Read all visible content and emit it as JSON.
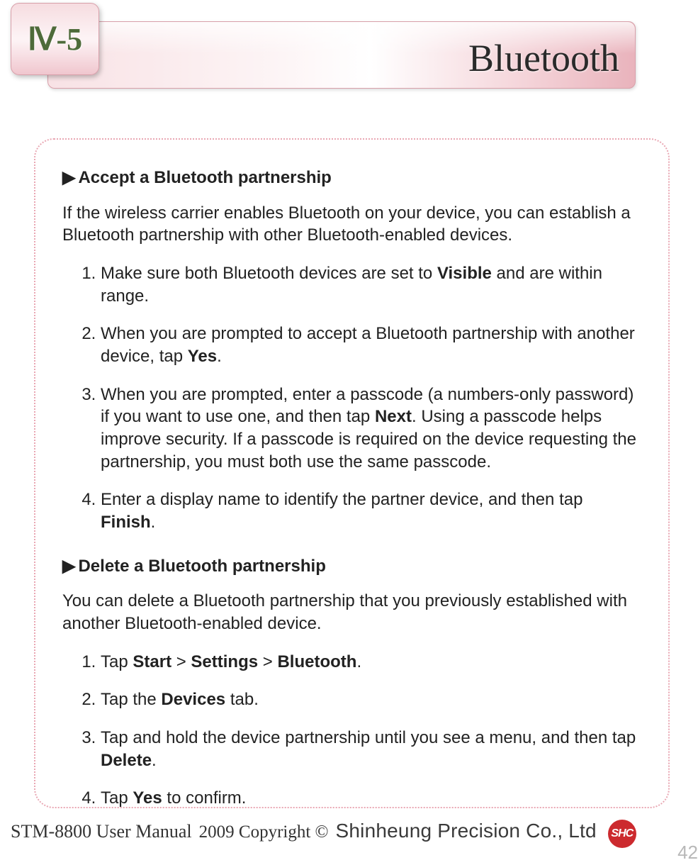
{
  "header": {
    "section_number": "Ⅳ-5",
    "title": "Bluetooth"
  },
  "content": {
    "section_a": {
      "heading_marker": "▶",
      "heading": "Accept a Bluetooth partnership",
      "intro": "If the wireless carrier enables Bluetooth on your device, you can establish a Bluetooth partnership with other Bluetooth-enabled devices.",
      "steps": [
        {
          "pre": "Make sure both Bluetooth devices are set to ",
          "b1": "Visible",
          "post": " and are within range."
        },
        {
          "pre": "When you are prompted to accept a Bluetooth partnership with another device, tap ",
          "b1": "Yes",
          "post": "."
        },
        {
          "pre": "When you are prompted, enter a passcode (a numbers-only password) if you want to use one, and then tap ",
          "b1": "Next",
          "post": ". Using a passcode helps improve security. If a passcode is required on the device requesting the partnership, you must both use the same passcode."
        },
        {
          "pre": "Enter a display name to identify the partner device, and then tap ",
          "b1": "Finish",
          "post": "."
        }
      ]
    },
    "section_b": {
      "heading_marker": "▶",
      "heading": "Delete a Bluetooth partnership",
      "intro": "You can delete a Bluetooth partnership that you previously established with another Bluetooth-enabled device.",
      "steps": [
        {
          "pre": "Tap ",
          "b1": "Start",
          "mid1": " > ",
          "b2": "Settings",
          "mid2": " > ",
          "b3": "Bluetooth",
          "post": "."
        },
        {
          "pre": "Tap the ",
          "b1": "Devices",
          "post": " tab."
        },
        {
          "pre": "Tap and hold the device partnership until you see a menu, and then tap ",
          "b1": "Delete",
          "post": "."
        },
        {
          "pre": "Tap ",
          "b1": "Yes",
          "post": " to confirm."
        }
      ]
    }
  },
  "footer": {
    "manual": "STM-8800 User Manual",
    "copyright": "2009 Copyright ©",
    "company": "Shinheung Precision Co., Ltd",
    "logo_text": "SHC",
    "page_number": "42"
  },
  "style": {
    "banner_gradient": [
      "#f8e2e5",
      "#fdf5f6",
      "#ffffff",
      "#f5d6db",
      "#e9b3bc"
    ],
    "badge_gradient": [
      "#f6dce0",
      "#fdf3f5",
      "#f0c6ce"
    ],
    "badge_text_color": "#4e6b3a",
    "border_dot_color": "#e9a7b3",
    "header_title_color": "#2a2a2a",
    "body_text_color": "#222222",
    "logo_bg": "#cc2a2e",
    "pagenum_color": "#b8b8b8",
    "body_font_size": 24,
    "header_font_size": 54,
    "badge_font_size": 44
  }
}
